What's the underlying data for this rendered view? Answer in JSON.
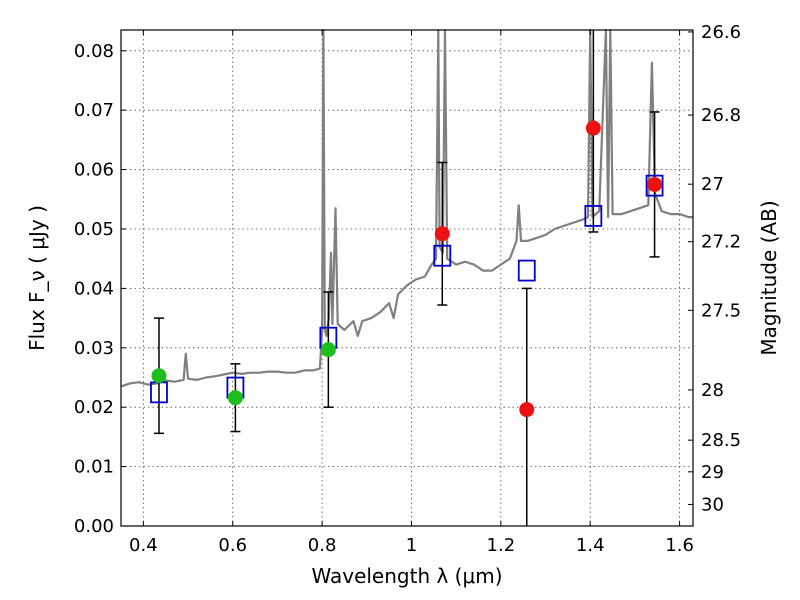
{
  "chart_data": {
    "type": "scatter",
    "title": "",
    "xlabel": "Wavelength  λ (μm)",
    "ylabel": "Flux  F_ν  ( μJy )",
    "ylabel_right": "Magnitude (AB)",
    "xlim": [
      0.35,
      1.63
    ],
    "ylim": [
      0,
      0.0835
    ],
    "grid": true,
    "x_ticks": [
      0.4,
      0.6,
      0.8,
      1.0,
      1.2,
      1.4,
      1.6
    ],
    "x_tick_labels": [
      "0.4",
      "0.6",
      "0.8",
      "1",
      "1.2",
      "1.4",
      "1.6"
    ],
    "y_ticks": [
      0.0,
      0.01,
      0.02,
      0.03,
      0.04,
      0.05,
      0.06,
      0.07,
      0.08
    ],
    "y_tick_labels": [
      "0.00",
      "0.01",
      "0.02",
      "0.03",
      "0.04",
      "0.05",
      "0.06",
      "0.07",
      "0.08"
    ],
    "right_ticks": [
      {
        "mag": 26.6,
        "label": "26.6"
      },
      {
        "mag": 26.8,
        "label": "26.8"
      },
      {
        "mag": 27.0,
        "label": "27"
      },
      {
        "mag": 27.2,
        "label": "27.2"
      },
      {
        "mag": 27.5,
        "label": "27.5"
      },
      {
        "mag": 28.0,
        "label": "28"
      },
      {
        "mag": 28.5,
        "label": "28.5"
      },
      {
        "mag": 29.0,
        "label": "29"
      },
      {
        "mag": 30.0,
        "label": "30"
      }
    ],
    "mag_zero_point": 23.9,
    "colors": {
      "spectrum": "#808080",
      "observed_optical": "#1fbe1f",
      "observed_nir": "#ee1111",
      "model": "#0000cc",
      "errorbar": "#000000"
    },
    "series": [
      {
        "kind": "line",
        "points": [
          [
            0.35,
            0.0235
          ],
          [
            0.37,
            0.024
          ],
          [
            0.39,
            0.0242
          ],
          [
            0.41,
            0.0238
          ],
          [
            0.43,
            0.024
          ],
          [
            0.45,
            0.0245
          ],
          [
            0.47,
            0.0243
          ],
          [
            0.49,
            0.0246
          ],
          [
            0.495,
            0.029
          ],
          [
            0.5,
            0.0248
          ],
          [
            0.52,
            0.0246
          ],
          [
            0.54,
            0.025
          ],
          [
            0.56,
            0.0252
          ],
          [
            0.58,
            0.0255
          ],
          [
            0.6,
            0.0258
          ],
          [
            0.62,
            0.0256
          ],
          [
            0.64,
            0.0258
          ],
          [
            0.66,
            0.0258
          ],
          [
            0.68,
            0.026
          ],
          [
            0.7,
            0.026
          ],
          [
            0.72,
            0.0258
          ],
          [
            0.74,
            0.0258
          ],
          [
            0.76,
            0.0262
          ],
          [
            0.78,
            0.0262
          ],
          [
            0.795,
            0.0265
          ],
          [
            0.8,
            0.033
          ],
          [
            0.803,
            0.0835
          ],
          [
            0.806,
            0.033
          ],
          [
            0.81,
            0.032
          ],
          [
            0.815,
            0.035
          ],
          [
            0.82,
            0.046
          ],
          [
            0.823,
            0.034
          ],
          [
            0.83,
            0.0535
          ],
          [
            0.835,
            0.034
          ],
          [
            0.85,
            0.033
          ],
          [
            0.87,
            0.0345
          ],
          [
            0.88,
            0.032
          ],
          [
            0.89,
            0.0345
          ],
          [
            0.91,
            0.035
          ],
          [
            0.93,
            0.036
          ],
          [
            0.95,
            0.0375
          ],
          [
            0.96,
            0.035
          ],
          [
            0.97,
            0.039
          ],
          [
            0.99,
            0.0405
          ],
          [
            1.01,
            0.0415
          ],
          [
            1.03,
            0.042
          ],
          [
            1.045,
            0.044
          ],
          [
            1.055,
            0.045
          ],
          [
            1.06,
            0.0835
          ],
          [
            1.063,
            0.047
          ],
          [
            1.07,
            0.046
          ],
          [
            1.075,
            0.0835
          ],
          [
            1.08,
            0.045
          ],
          [
            1.1,
            0.044
          ],
          [
            1.12,
            0.0445
          ],
          [
            1.14,
            0.044
          ],
          [
            1.16,
            0.043
          ],
          [
            1.18,
            0.043
          ],
          [
            1.2,
            0.044
          ],
          [
            1.22,
            0.045
          ],
          [
            1.235,
            0.048
          ],
          [
            1.24,
            0.054
          ],
          [
            1.245,
            0.048
          ],
          [
            1.26,
            0.048
          ],
          [
            1.28,
            0.0485
          ],
          [
            1.3,
            0.049
          ],
          [
            1.32,
            0.05
          ],
          [
            1.34,
            0.0505
          ],
          [
            1.36,
            0.051
          ],
          [
            1.38,
            0.0515
          ],
          [
            1.395,
            0.052
          ],
          [
            1.4,
            0.0835
          ],
          [
            1.405,
            0.052
          ],
          [
            1.42,
            0.053
          ],
          [
            1.435,
            0.0835
          ],
          [
            1.44,
            0.052
          ],
          [
            1.445,
            0.0835
          ],
          [
            1.45,
            0.0525
          ],
          [
            1.47,
            0.0525
          ],
          [
            1.49,
            0.053
          ],
          [
            1.51,
            0.0535
          ],
          [
            1.53,
            0.054
          ],
          [
            1.538,
            0.078
          ],
          [
            1.545,
            0.056
          ],
          [
            1.56,
            0.053
          ],
          [
            1.58,
            0.0525
          ],
          [
            1.6,
            0.0525
          ],
          [
            1.62,
            0.052
          ],
          [
            1.63,
            0.052
          ]
        ]
      },
      {
        "kind": "observed",
        "color_key": "observed_optical",
        "points": [
          {
            "x": 0.435,
            "y": 0.0253,
            "err": 0.0097
          },
          {
            "x": 0.606,
            "y": 0.0216,
            "err": 0.0057
          },
          {
            "x": 0.814,
            "y": 0.0297,
            "err": 0.0097
          }
        ]
      },
      {
        "kind": "observed",
        "color_key": "observed_nir",
        "points": [
          {
            "x": 1.069,
            "y": 0.0492,
            "err": 0.012
          },
          {
            "x": 1.258,
            "y": 0.0196,
            "err": 0.0204
          },
          {
            "x": 1.407,
            "y": 0.067,
            "err": 0.0175
          },
          {
            "x": 1.544,
            "y": 0.0575,
            "err": 0.0122
          }
        ]
      },
      {
        "kind": "model",
        "color_key": "model",
        "points": [
          {
            "x": 0.435,
            "y": 0.0225
          },
          {
            "x": 0.606,
            "y": 0.0233
          },
          {
            "x": 0.814,
            "y": 0.0317
          },
          {
            "x": 1.069,
            "y": 0.0455
          },
          {
            "x": 1.258,
            "y": 0.043
          },
          {
            "x": 1.407,
            "y": 0.0522
          },
          {
            "x": 1.544,
            "y": 0.0573
          }
        ]
      }
    ]
  }
}
